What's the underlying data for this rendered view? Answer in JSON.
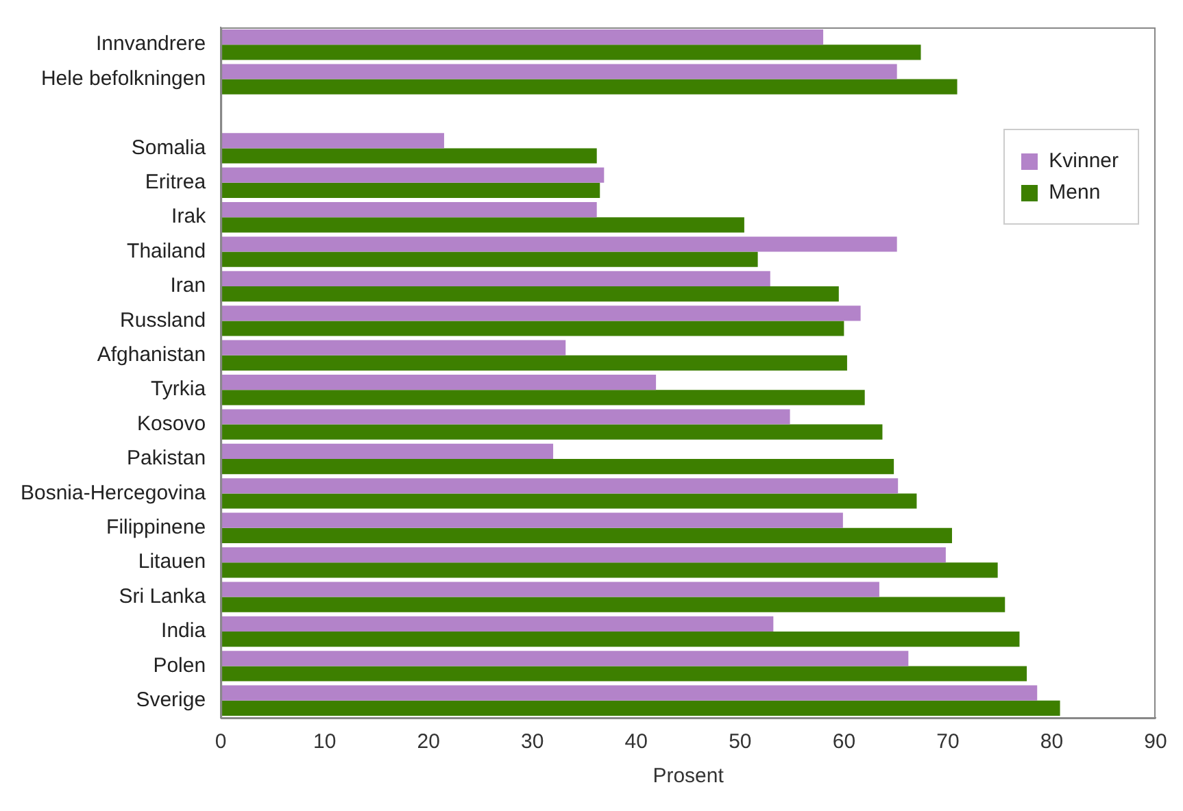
{
  "chart_data": {
    "type": "bar",
    "orientation": "horizontal",
    "xlabel": "Prosent",
    "categories": [
      "Innvandrere",
      "Hele befolkningen",
      null,
      "Somalia",
      "Eritrea",
      "Irak",
      "Thailand",
      "Iran",
      "Russland",
      "Afghanistan",
      "Tyrkia",
      "Kosovo",
      "Pakistan",
      "Bosnia-Hercegovina",
      "Filippinene",
      "Litauen",
      "Sri Lanka",
      "India",
      "Polen",
      "Sverige"
    ],
    "series": [
      {
        "name": "Kvinner",
        "color": "#b383c9",
        "values": [
          58,
          65.1,
          null,
          21.5,
          36.9,
          36.2,
          65.1,
          52.9,
          61.6,
          33.2,
          41.9,
          54.8,
          32,
          65.2,
          59.9,
          69.8,
          63.4,
          53.2,
          66.2,
          78.6
        ]
      },
      {
        "name": "Menn",
        "color": "#3d7f00",
        "values": [
          67.4,
          70.9,
          null,
          36.2,
          36.5,
          50.4,
          51.7,
          59.5,
          60,
          60.3,
          62,
          63.7,
          64.8,
          67,
          70.4,
          74.8,
          75.5,
          76.9,
          77.6,
          80.8
        ]
      }
    ],
    "xlim": [
      0,
      90
    ],
    "xticks": [
      0,
      10,
      20,
      30,
      40,
      50,
      60,
      70,
      80,
      90
    ],
    "grid": false,
    "legend": "top right"
  }
}
